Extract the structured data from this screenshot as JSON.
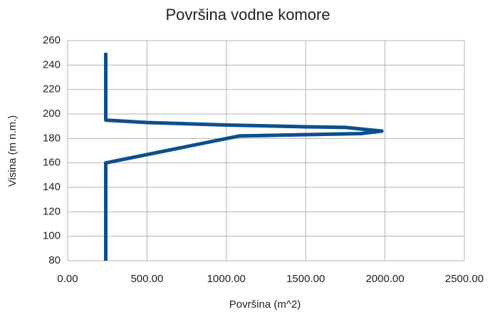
{
  "chart_data": {
    "type": "line",
    "title": "Površina vodne komore",
    "xlabel": "Površina (m^2)",
    "ylabel": "Visina (m n.m.)",
    "x": [
      240,
      240,
      1080,
      1850,
      1980,
      1750,
      1500,
      1000,
      500,
      240,
      240
    ],
    "values": [
      80,
      160,
      182,
      184,
      186,
      189,
      189.5,
      191,
      193,
      195,
      250
    ],
    "color": "#0e4f8b",
    "xlim": [
      0,
      2500
    ],
    "xticks": [
      {
        "value": 0,
        "label": "0.00"
      },
      {
        "value": 500,
        "label": "500.00"
      },
      {
        "value": 1000,
        "label": "1000.00"
      },
      {
        "value": 1500,
        "label": "1500.00"
      },
      {
        "value": 2000,
        "label": "2000.00"
      },
      {
        "value": 2500,
        "label": "2500.00"
      }
    ],
    "ylim": [
      80,
      260
    ],
    "yticks": [
      80,
      100,
      120,
      140,
      160,
      180,
      200,
      220,
      240,
      260
    ],
    "grid": true
  }
}
